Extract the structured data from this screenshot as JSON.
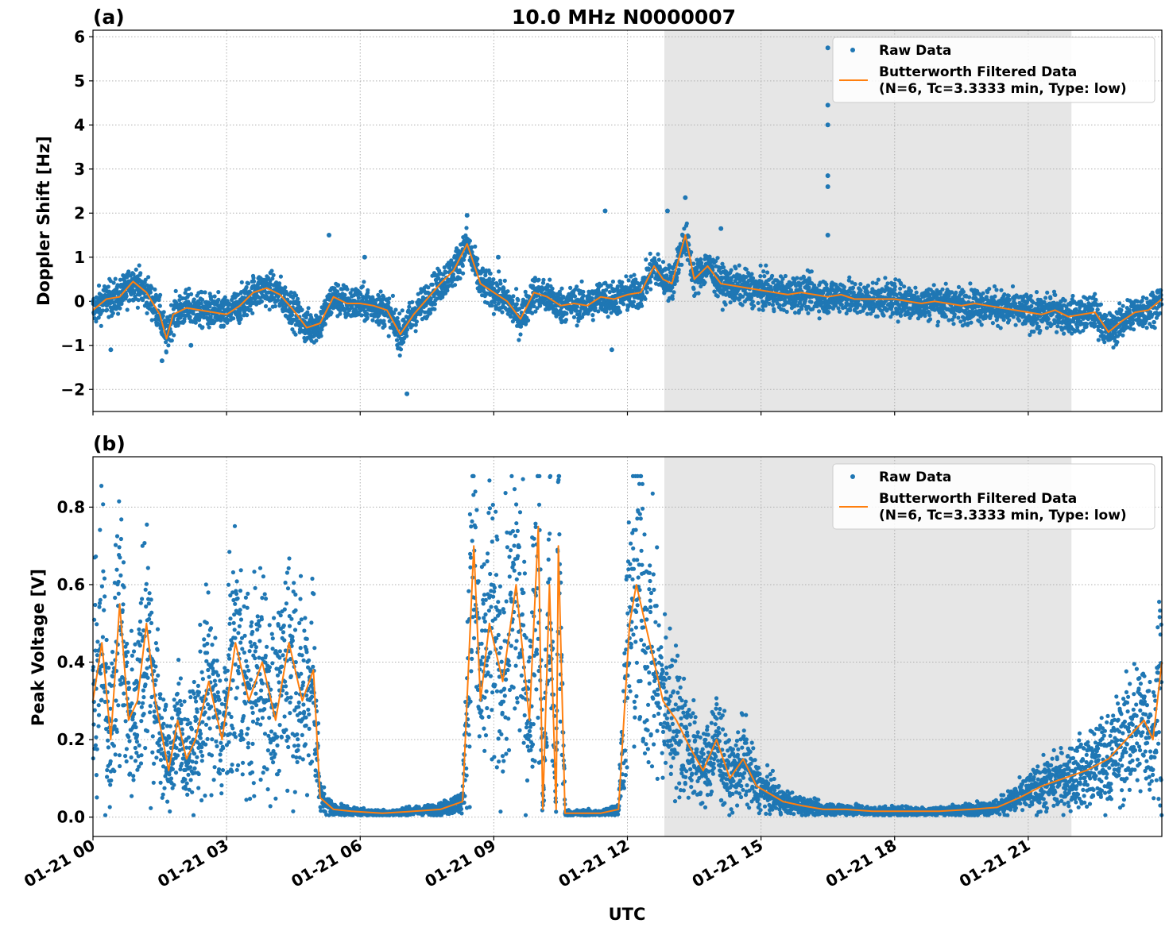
{
  "figure": {
    "title": "10.0 MHz N0000007",
    "xlabel": "UTC"
  },
  "colors": {
    "raw": "#1f77b4",
    "filtered": "#ff7f0e",
    "shade": "#e6e6e6",
    "grid": "#b0b0b0"
  },
  "x_ticks": [
    "01-21 00",
    "01-21 03",
    "01-21 06",
    "01-21 09",
    "01-21 12",
    "01-21 15",
    "01-21 18",
    "01-21 21"
  ],
  "chart_data": [
    {
      "panel": "(a)",
      "type": "scatter",
      "ylabel": "Doppler Shift [Hz]",
      "xlim_hours": [
        0,
        24
      ],
      "ylim": [
        -2.5,
        6.15
      ],
      "yticks": [
        -2,
        -1,
        0,
        1,
        2,
        3,
        4,
        5,
        6
      ],
      "ytick_labels": [
        "−2",
        "−1",
        "0",
        "1",
        "2",
        "3",
        "4",
        "5",
        "6"
      ],
      "shaded_span_hours": [
        12.83,
        21.97
      ],
      "legend_position": "top-right",
      "legend": [
        "Raw Data",
        "Butterworth Filtered Data",
        "(N=6, Tc=3.3333 min, Type: low)"
      ],
      "series": [
        {
          "name": "Butterworth Filtered Data",
          "kind": "line",
          "x": [
            0,
            0.3,
            0.6,
            0.9,
            1.2,
            1.5,
            1.65,
            1.8,
            2.1,
            2.4,
            2.7,
            3.0,
            3.3,
            3.6,
            3.9,
            4.2,
            4.5,
            4.8,
            5.1,
            5.4,
            5.7,
            6.0,
            6.3,
            6.6,
            6.9,
            7.2,
            7.5,
            7.8,
            8.1,
            8.4,
            8.7,
            9.0,
            9.3,
            9.6,
            9.9,
            10.2,
            10.5,
            10.8,
            11.1,
            11.4,
            11.7,
            12.0,
            12.3,
            12.6,
            12.8,
            13.0,
            13.3,
            13.5,
            13.8,
            14.1,
            14.4,
            14.7,
            15.0,
            15.3,
            15.6,
            15.9,
            16.2,
            16.5,
            16.8,
            17.1,
            17.4,
            17.7,
            18.0,
            18.3,
            18.6,
            18.9,
            19.2,
            19.5,
            19.8,
            20.1,
            20.4,
            20.7,
            21.0,
            21.3,
            21.6,
            21.9,
            22.2,
            22.5,
            22.8,
            23.1,
            23.4,
            23.7,
            24.0
          ],
          "y": [
            -0.2,
            0.05,
            0.1,
            0.45,
            0.2,
            -0.3,
            -0.85,
            -0.3,
            -0.15,
            -0.2,
            -0.25,
            -0.3,
            -0.1,
            0.2,
            0.3,
            0.15,
            -0.2,
            -0.6,
            -0.5,
            0.1,
            -0.05,
            -0.05,
            -0.1,
            -0.2,
            -0.75,
            -0.3,
            0.05,
            0.4,
            0.7,
            1.3,
            0.4,
            0.2,
            0.0,
            -0.4,
            0.2,
            0.1,
            -0.1,
            -0.05,
            -0.1,
            0.1,
            0.05,
            0.15,
            0.2,
            0.8,
            0.5,
            0.4,
            1.5,
            0.5,
            0.8,
            0.4,
            0.35,
            0.3,
            0.25,
            0.2,
            0.15,
            0.2,
            0.15,
            0.1,
            0.15,
            0.05,
            0.05,
            0.05,
            0.05,
            0.0,
            -0.05,
            0.0,
            -0.05,
            -0.1,
            -0.05,
            -0.1,
            -0.15,
            -0.2,
            -0.25,
            -0.3,
            -0.2,
            -0.35,
            -0.3,
            -0.25,
            -0.7,
            -0.45,
            -0.25,
            -0.2,
            0.05
          ]
        },
        {
          "name": "Raw Data",
          "kind": "scatter",
          "x": [
            0.4,
            1.55,
            2.2,
            5.3,
            6.1,
            7.05,
            8.4,
            9.1,
            11.5,
            11.65,
            12.9,
            13.3,
            14.1,
            16.5,
            16.5,
            16.5,
            16.5,
            16.5,
            16.5
          ],
          "y": [
            -1.1,
            -1.35,
            -1.0,
            1.5,
            1.0,
            -2.1,
            1.95,
            1.0,
            2.05,
            -1.1,
            2.05,
            2.35,
            1.65,
            5.75,
            4.45,
            4.0,
            2.85,
            2.6,
            1.5
          ]
        }
      ]
    },
    {
      "panel": "(b)",
      "type": "scatter",
      "ylabel": "Peak Voltage [V]",
      "xlim_hours": [
        0,
        24
      ],
      "ylim": [
        -0.05,
        0.93
      ],
      "yticks": [
        0.0,
        0.2,
        0.4,
        0.6,
        0.8
      ],
      "ytick_labels": [
        "0.0",
        "0.2",
        "0.4",
        "0.6",
        "0.8"
      ],
      "shaded_span_hours": [
        12.83,
        21.97
      ],
      "legend_position": "top-right",
      "legend": [
        "Raw Data",
        "Butterworth Filtered Data",
        "(N=6, Tc=3.3333 min, Type: low)"
      ],
      "series": [
        {
          "name": "Butterworth Filtered Data",
          "kind": "line",
          "x": [
            0,
            0.2,
            0.4,
            0.6,
            0.8,
            1.0,
            1.2,
            1.4,
            1.7,
            1.9,
            2.1,
            2.3,
            2.6,
            2.9,
            3.2,
            3.5,
            3.8,
            4.1,
            4.4,
            4.7,
            4.95,
            5.1,
            5.4,
            5.8,
            6.5,
            7.2,
            7.8,
            8.3,
            8.55,
            8.7,
            8.9,
            9.2,
            9.5,
            9.8,
            10.0,
            10.1,
            10.25,
            10.4,
            10.45,
            10.6,
            10.9,
            11.4,
            11.8,
            12.05,
            12.2,
            12.5,
            12.8,
            13.1,
            13.4,
            13.7,
            14.0,
            14.3,
            14.6,
            14.9,
            15.2,
            15.5,
            15.9,
            16.4,
            16.9,
            17.5,
            18.2,
            19.0,
            19.7,
            20.3,
            20.8,
            21.3,
            21.8,
            22.3,
            22.8,
            23.2,
            23.6,
            23.8,
            24.0
          ],
          "y": [
            0.3,
            0.45,
            0.2,
            0.55,
            0.25,
            0.3,
            0.5,
            0.3,
            0.12,
            0.25,
            0.15,
            0.2,
            0.35,
            0.2,
            0.45,
            0.3,
            0.4,
            0.25,
            0.45,
            0.3,
            0.38,
            0.05,
            0.02,
            0.015,
            0.01,
            0.015,
            0.02,
            0.04,
            0.7,
            0.3,
            0.5,
            0.35,
            0.6,
            0.25,
            0.75,
            0.02,
            0.6,
            0.02,
            0.7,
            0.01,
            0.01,
            0.01,
            0.02,
            0.5,
            0.6,
            0.45,
            0.3,
            0.25,
            0.18,
            0.12,
            0.2,
            0.1,
            0.15,
            0.08,
            0.06,
            0.04,
            0.03,
            0.02,
            0.02,
            0.015,
            0.015,
            0.015,
            0.02,
            0.025,
            0.05,
            0.08,
            0.1,
            0.12,
            0.15,
            0.2,
            0.25,
            0.2,
            0.4
          ]
        }
      ]
    }
  ]
}
